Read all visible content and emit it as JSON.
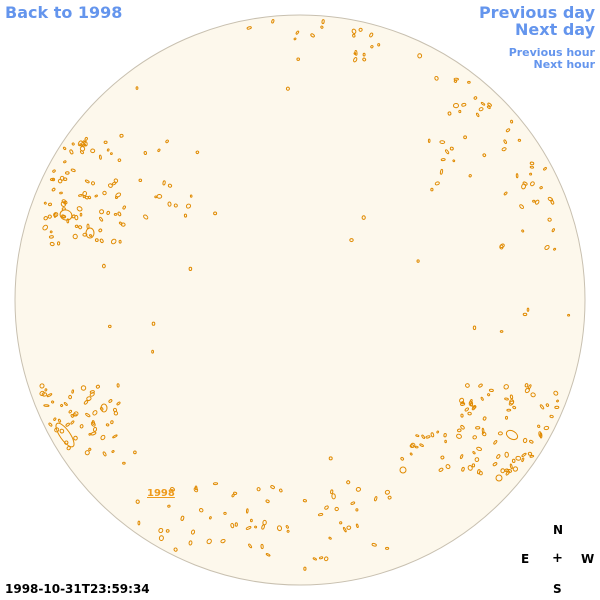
{
  "nav": {
    "back_label": "Back to 1998",
    "previous_day": "Previous day",
    "next_day": "Next day",
    "previous_hour": "Previous hour",
    "next_hour": "Next hour"
  },
  "disk": {
    "link_label": "1998",
    "fill_color": "#fdf8ec",
    "outline_color": "#c8c0b0",
    "contour_color": "#e08a00"
  },
  "compass": {
    "north": "N",
    "east": "E",
    "center": "+",
    "west": "W",
    "south": "S"
  },
  "timestamp": "1998-10-31T23:59:34"
}
